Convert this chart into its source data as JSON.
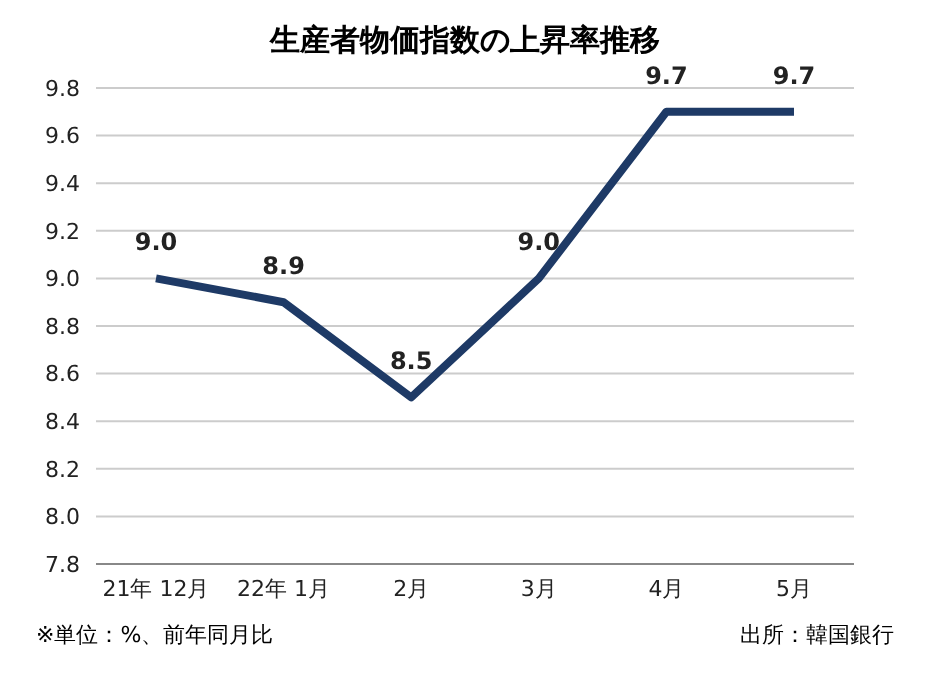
{
  "chart_data": {
    "type": "line",
    "title": "生産者物価指数の上昇率推移",
    "categories": [
      "21年 12月",
      "22年 1月",
      "2月",
      "3月",
      "4月",
      "5月"
    ],
    "values": [
      9.0,
      8.9,
      8.5,
      9.0,
      9.7,
      9.7
    ],
    "value_labels": [
      "9.0",
      "8.9",
      "8.5",
      "9.0",
      "9.7",
      "9.7"
    ],
    "color": "#1e3a66",
    "ylim": [
      7.8,
      9.8
    ],
    "yticks": [
      {
        "value": 7.8,
        "label": "7.8"
      },
      {
        "value": 8,
        "label": "8.0"
      },
      {
        "value": 8.2,
        "label": "8.2"
      },
      {
        "value": 8.4,
        "label": "8.4"
      },
      {
        "value": 8.6,
        "label": "8.6"
      },
      {
        "value": 8.8,
        "label": "8.8"
      },
      {
        "value": 9,
        "label": "9.0"
      },
      {
        "value": 9.2,
        "label": "9.2"
      },
      {
        "value": 9.4,
        "label": "9.4"
      },
      {
        "value": 9.6,
        "label": "9.6"
      },
      {
        "value": 9.8,
        "label": "9.8"
      }
    ],
    "grid": "y",
    "annotations": [
      "※単位：%、前年同月比",
      "出所：韓国銀行"
    ]
  }
}
